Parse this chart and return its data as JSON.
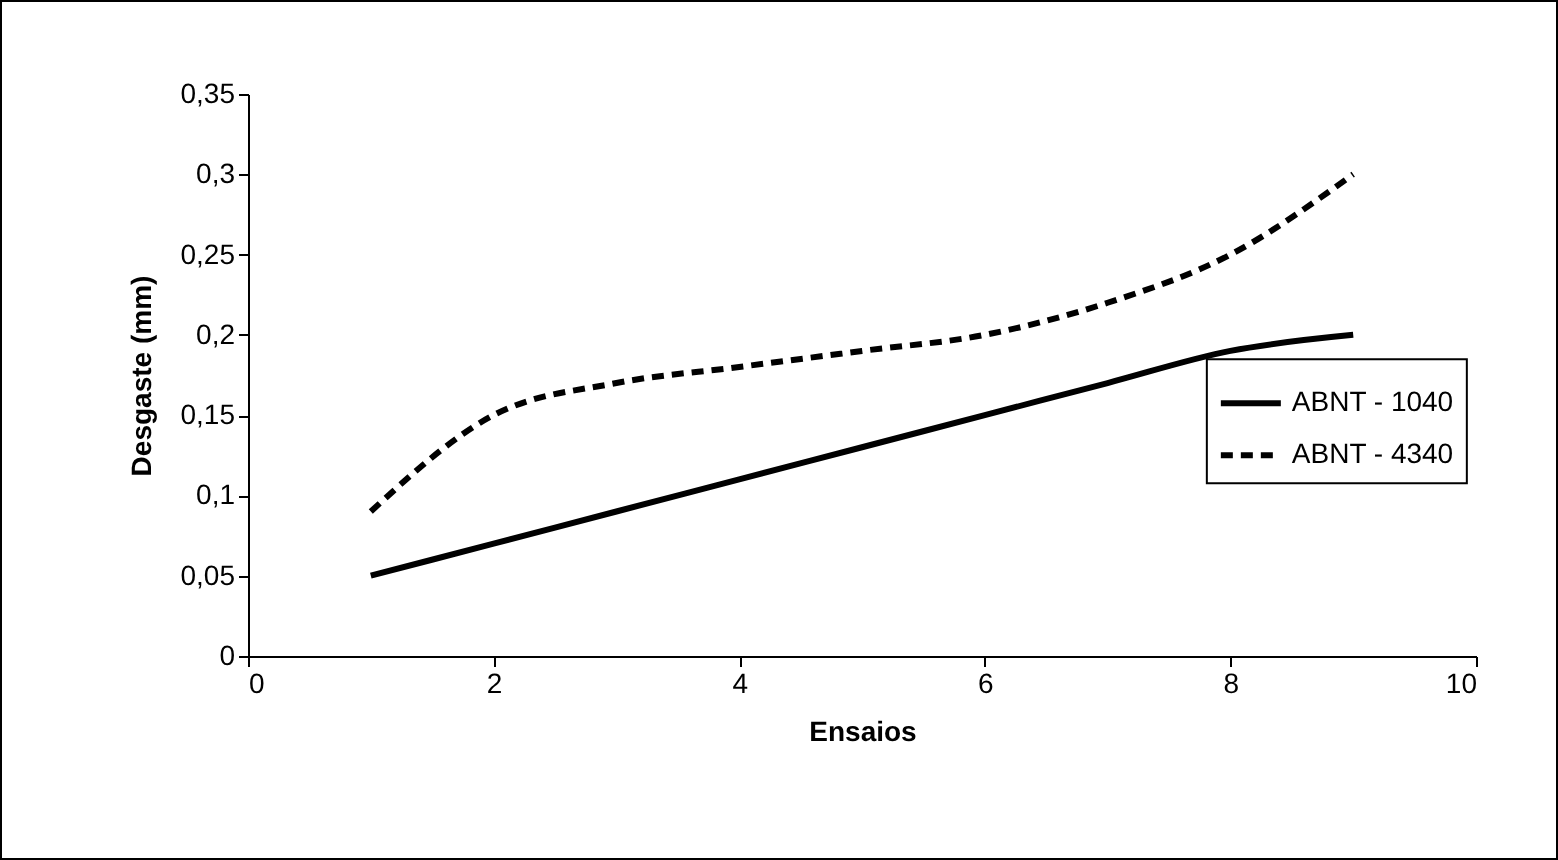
{
  "chart_data": {
    "type": "line",
    "xlabel": "Ensaios",
    "ylabel": "Desgaste (mm)",
    "x": [
      1,
      2,
      3,
      4,
      5,
      6,
      7,
      8,
      9
    ],
    "series": [
      {
        "name": "ABNT - 1040",
        "color": "#000000",
        "line_style": "solid",
        "values": [
          0.05,
          0.07,
          0.09,
          0.11,
          0.13,
          0.15,
          0.17,
          0.19,
          0.2
        ]
      },
      {
        "name": "ABNT - 4340",
        "color": "#000000",
        "line_style": "dashed",
        "values": [
          0.09,
          0.15,
          0.17,
          0.18,
          0.19,
          0.2,
          0.22,
          0.25,
          0.3
        ]
      }
    ],
    "xlim": [
      0,
      10
    ],
    "xticks": [
      0,
      2,
      4,
      6,
      8,
      10
    ],
    "ylim": [
      0,
      0.35
    ],
    "yticks": [
      0,
      {
        "value": 0.05,
        "label": "0,05"
      },
      {
        "value": 0.1,
        "label": "0,1"
      },
      {
        "value": 0.15,
        "label": "0,15"
      },
      {
        "value": 0.2,
        "label": "0,2"
      },
      {
        "value": 0.25,
        "label": "0,25"
      },
      {
        "value": 0.3,
        "label": "0,3"
      },
      {
        "value": 0.35,
        "label": "0,35"
      }
    ],
    "grid": false,
    "legend": "right"
  }
}
